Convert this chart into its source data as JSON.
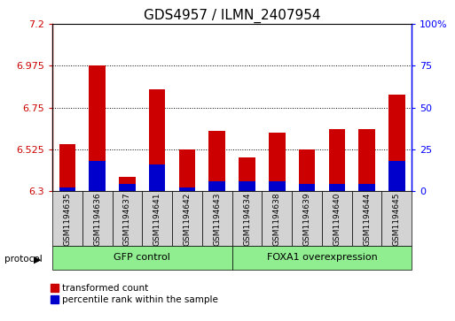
{
  "title": "GDS4957 / ILMN_2407954",
  "samples": [
    "GSM1194635",
    "GSM1194636",
    "GSM1194637",
    "GSM1194641",
    "GSM1194642",
    "GSM1194643",
    "GSM1194634",
    "GSM1194638",
    "GSM1194639",
    "GSM1194640",
    "GSM1194644",
    "GSM1194645"
  ],
  "red_values": [
    6.555,
    6.975,
    6.375,
    6.85,
    6.525,
    6.625,
    6.48,
    6.615,
    6.525,
    6.635,
    6.635,
    6.82
  ],
  "blue_percentiles": [
    2,
    18,
    4,
    16,
    2,
    6,
    6,
    6,
    4,
    4,
    4,
    18
  ],
  "ylim_left": [
    6.3,
    7.2
  ],
  "yticks_left": [
    6.3,
    6.525,
    6.75,
    6.975,
    7.2
  ],
  "ytick_labels_left": [
    "6.3",
    "6.525",
    "6.75",
    "6.975",
    "7.2"
  ],
  "ylim_right": [
    0,
    100
  ],
  "yticks_right": [
    0,
    25,
    50,
    75,
    100
  ],
  "ytick_labels_right": [
    "0",
    "25",
    "50",
    "75",
    "100%"
  ],
  "bar_width": 0.55,
  "bar_color_red": "#cc0000",
  "bar_color_blue": "#0000cc",
  "bar_base": 6.3,
  "groups": [
    {
      "label": "GFP control",
      "start": 0,
      "end": 5
    },
    {
      "label": "FOXA1 overexpression",
      "start": 6,
      "end": 11
    }
  ],
  "group_color": "#90ee90",
  "protocol_label": "protocol",
  "legend_items": [
    {
      "color": "#cc0000",
      "label": "transformed count"
    },
    {
      "color": "#0000cc",
      "label": "percentile rank within the sample"
    }
  ],
  "grid_color": "black",
  "sample_box_color": "#d3d3d3",
  "plot_bg": "#ffffff",
  "title_fontsize": 11,
  "tick_fontsize": 8,
  "label_fontsize": 8
}
